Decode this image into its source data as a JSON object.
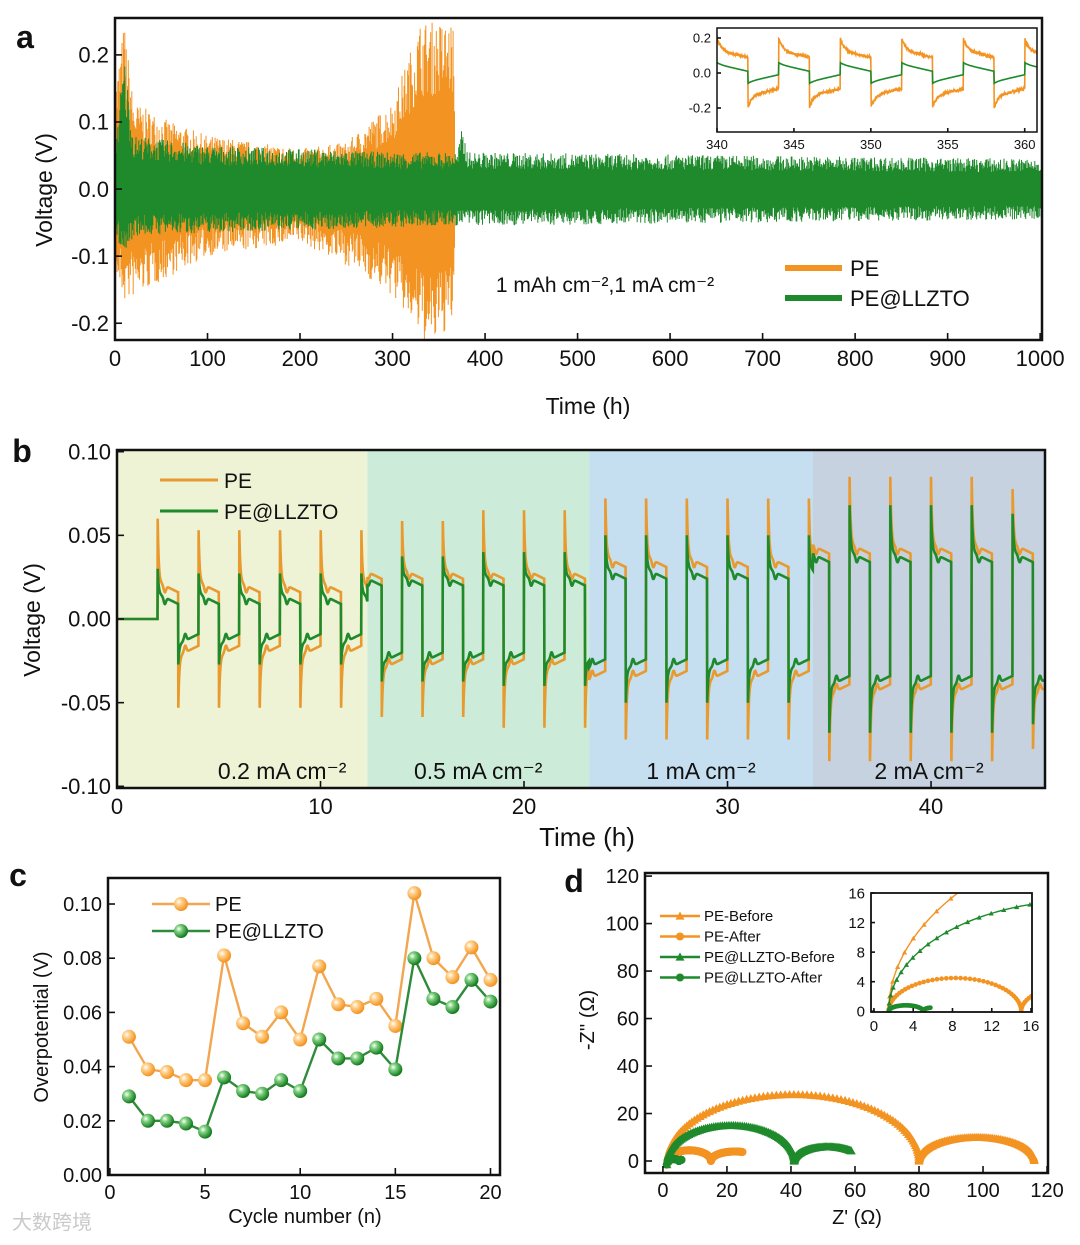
{
  "figure": {
    "watermark": "大数跨境",
    "colors": {
      "pe": "#f39321",
      "llzto": "#1f8a2c",
      "pe_b": "#e89a2e"
    }
  },
  "chart_data": [
    {
      "panel": "a",
      "type": "line",
      "title": "",
      "xlabel": "Time (h)",
      "ylabel": "Voltage (V)",
      "xlim": [
        0,
        1000
      ],
      "ylim": [
        -0.225,
        0.255
      ],
      "xticks": [
        0,
        100,
        200,
        300,
        400,
        500,
        600,
        700,
        800,
        900,
        1000
      ],
      "xtick_labels": [
        "0",
        "100",
        "200",
        "300",
        "400",
        "500",
        "600",
        "700",
        "800",
        "900",
        "1000"
      ],
      "yticks": [
        -0.2,
        -0.1,
        0.0,
        0.1,
        0.2
      ],
      "ytick_labels": [
        "-0.2",
        "-0.1",
        "0.0",
        "0.1",
        "0.2"
      ],
      "annotation": "1 mAh cm⁻²,1 mA cm⁻²",
      "legend": {
        "position": "bottom-right",
        "entries": [
          "PE",
          "PE@LLZTO"
        ]
      },
      "series": [
        {
          "name": "PE",
          "envelope_upper": [
            [
              0,
              0.15
            ],
            [
              10,
              0.25
            ],
            [
              20,
              0.13
            ],
            [
              60,
              0.1
            ],
            [
              100,
              0.08
            ],
            [
              200,
              0.06
            ],
            [
              250,
              0.07
            ],
            [
              300,
              0.13
            ],
            [
              330,
              0.25
            ],
            [
              366,
              0.25
            ],
            [
              368,
              0
            ]
          ],
          "envelope_lower": [
            [
              0,
              -0.13
            ],
            [
              10,
              -0.17
            ],
            [
              60,
              -0.13
            ],
            [
              100,
              -0.1
            ],
            [
              200,
              -0.08
            ],
            [
              260,
              -0.12
            ],
            [
              300,
              -0.16
            ],
            [
              340,
              -0.24
            ],
            [
              366,
              -0.2
            ],
            [
              368,
              0
            ]
          ]
        },
        {
          "name": "PE@LLZTO",
          "envelope_upper": [
            [
              0,
              0.07
            ],
            [
              10,
              0.2
            ],
            [
              20,
              0.08
            ],
            [
              100,
              0.065
            ],
            [
              300,
              0.055
            ],
            [
              370,
              0.055
            ],
            [
              375,
              0.09
            ],
            [
              382,
              0.055
            ],
            [
              1000,
              0.045
            ]
          ],
          "envelope_lower": [
            [
              0,
              -0.07
            ],
            [
              10,
              -0.1
            ],
            [
              20,
              -0.07
            ],
            [
              100,
              -0.065
            ],
            [
              370,
              -0.055
            ],
            [
              1000,
              -0.045
            ]
          ]
        }
      ],
      "inset": {
        "xlim": [
          340,
          360.8
        ],
        "ylim": [
          -0.337,
          0.257
        ],
        "xticks": [
          340,
          345,
          350,
          355,
          360
        ],
        "xtick_labels": [
          "340",
          "345",
          "350",
          "355",
          "360"
        ],
        "yticks": [
          -0.2,
          0.0,
          0.2
        ],
        "ytick_labels": [
          "-0.2",
          "0.0",
          "0.2"
        ],
        "period_h": 4,
        "pe_level": 0.13,
        "pe_spike": 0.2,
        "llzto_level": 0.05
      }
    },
    {
      "panel": "b",
      "type": "line",
      "xlabel": "Time (h)",
      "ylabel": "Voltage (V)",
      "xlim": [
        0,
        45.6
      ],
      "ylim": [
        -0.101,
        0.101
      ],
      "xticks": [
        0,
        10,
        20,
        30,
        40
      ],
      "xtick_labels": [
        "0",
        "10",
        "20",
        "30",
        "40"
      ],
      "yticks": [
        -0.1,
        -0.05,
        0,
        0.05,
        0.1
      ],
      "ytick_labels": [
        "-0.10",
        "-0.05",
        "0.00",
        "0.05",
        "0.10"
      ],
      "legend": {
        "position": "top-left",
        "entries": [
          "PE",
          "PE@LLZTO"
        ]
      },
      "start_h": 2,
      "period_h": 2,
      "regions": [
        {
          "label": "0.2 mA cm⁻²",
          "start": 0,
          "end": 12.3,
          "color": "#eef3d6",
          "pe_level": 0.022,
          "pe_spike": 0.06,
          "llzto_level": 0.015,
          "llzto_spike": 0.03
        },
        {
          "label": "0.5 mA cm⁻²",
          "start": 12.3,
          "end": 23.2,
          "color": "#ccecd9",
          "pe_level": 0.03,
          "pe_spike": 0.065,
          "llzto_level": 0.026,
          "llzto_spike": 0.04
        },
        {
          "label": "1 mA cm⁻²",
          "start": 23.2,
          "end": 34.2,
          "color": "#c5def0",
          "pe_level": 0.037,
          "pe_spike": 0.072,
          "llzto_level": 0.03,
          "llzto_spike": 0.05
        },
        {
          "label": "2 mA cm⁻²",
          "start": 34.2,
          "end": 45.6,
          "color": "#c6d2df",
          "pe_level": 0.045,
          "pe_spike": 0.085,
          "llzto_level": 0.04,
          "llzto_spike": 0.068
        }
      ]
    },
    {
      "panel": "c",
      "type": "line",
      "xlabel": "Cycle number (n)",
      "ylabel": "Overpotential (V)",
      "xlim": [
        -0.1,
        20.5
      ],
      "ylim": [
        0,
        0.1096
      ],
      "xticks": [
        0,
        5,
        10,
        15,
        20
      ],
      "xtick_labels": [
        "0",
        "5",
        "10",
        "15",
        "20"
      ],
      "yticks": [
        0,
        0.02,
        0.04,
        0.06,
        0.08,
        0.1
      ],
      "ytick_labels": [
        "0.00",
        "0.02",
        "0.04",
        "0.06",
        "0.08",
        "0.10"
      ],
      "legend": {
        "position": "top-left",
        "entries": [
          "PE",
          "PE@LLZTO"
        ]
      },
      "x": [
        1,
        2,
        3,
        4,
        5,
        6,
        7,
        8,
        9,
        10,
        11,
        12,
        13,
        14,
        15,
        16,
        17,
        18,
        19,
        20
      ],
      "series": [
        {
          "name": "PE",
          "values": [
            0.051,
            0.039,
            0.038,
            0.035,
            0.035,
            0.081,
            0.056,
            0.051,
            0.06,
            0.05,
            0.077,
            0.063,
            0.062,
            0.065,
            0.055,
            0.104,
            0.08,
            0.073,
            0.084,
            0.072
          ]
        },
        {
          "name": "PE@LLZTO",
          "values": [
            0.029,
            0.02,
            0.02,
            0.019,
            0.016,
            0.036,
            0.031,
            0.03,
            0.035,
            0.031,
            0.05,
            0.043,
            0.043,
            0.047,
            0.039,
            0.08,
            0.065,
            0.062,
            0.072,
            0.064
          ]
        }
      ]
    },
    {
      "panel": "d",
      "type": "scatter",
      "xlabel": "Z' (Ω)",
      "ylabel": "-Z'' (Ω)",
      "xlim": [
        -5.6,
        120.3
      ],
      "ylim": [
        -5.05,
        121.3
      ],
      "xticks": [
        0,
        20,
        40,
        60,
        80,
        100,
        120
      ],
      "xtick_labels": [
        "0",
        "20",
        "40",
        "60",
        "80",
        "100",
        "120"
      ],
      "yticks": [
        0,
        20,
        40,
        60,
        80,
        100,
        120
      ],
      "ytick_labels": [
        "0",
        "20",
        "40",
        "60",
        "80",
        "100",
        "120"
      ],
      "legend": {
        "position": "top-left",
        "entries": [
          "PE-Before",
          "PE-After",
          "PE@LLZTO-Before",
          "PE@LLZTO-After"
        ]
      },
      "series": [
        {
          "name": "PE-Before",
          "marker": "triangle",
          "color": "#f39321",
          "arcs": [
            [
              1.5,
              80,
              28
            ],
            [
              80,
              116,
              10
            ]
          ]
        },
        {
          "name": "PE-After",
          "marker": "circle",
          "color": "#f39321",
          "arcs": [
            [
              1.5,
              15,
              4.5
            ],
            [
              15,
              30,
              4
            ]
          ],
          "x_end": 25
        },
        {
          "name": "PE@LLZTO-Before",
          "marker": "triangle",
          "color": "#1f8a2c",
          "arcs": [
            [
              1.5,
              41,
              15
            ],
            [
              41,
              62,
              6
            ]
          ],
          "x_end": 59
        },
        {
          "name": "PE@LLZTO-After",
          "marker": "circle",
          "color": "#1f8a2c",
          "arcs": [
            [
              1.5,
              5,
              0.8
            ],
            [
              5,
              7,
              0.5
            ]
          ],
          "x_end": 5.8
        }
      ],
      "inset": {
        "xlim": [
          -0.3,
          16.1
        ],
        "ylim": [
          -0.1,
          16
        ],
        "xticks": [
          0,
          4,
          8,
          12,
          16
        ],
        "xtick_labels": [
          "0",
          "4",
          "8",
          "12",
          "16"
        ],
        "yticks": [
          0,
          4,
          8,
          12,
          16
        ],
        "ytick_labels": [
          "0",
          "4",
          "8",
          "12",
          "16"
        ]
      }
    }
  ],
  "panel_labels": [
    "a",
    "b",
    "c",
    "d"
  ]
}
